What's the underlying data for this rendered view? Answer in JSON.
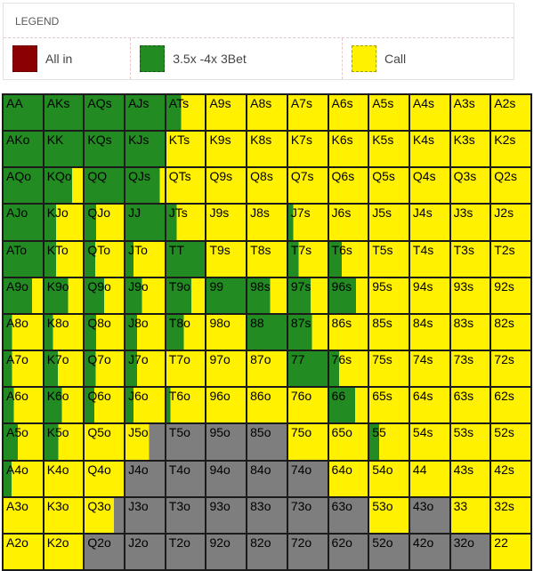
{
  "legend_panel": {
    "title": "LEGEND"
  },
  "chart_data": {
    "type": "heatmap",
    "layout": "13x13 preflop hand matrix, suited hands upper-right, offsuit lower-left, pairs on diagonal; split cells are vertical left-to-right fractions",
    "legend": [
      {
        "code": "a",
        "label": "All in",
        "color": "#8B0000"
      },
      {
        "code": "b",
        "label": "3.5x -4x 3Bet",
        "color": "#228B22"
      },
      {
        "code": "c",
        "label": "Call",
        "color": "#FFF100"
      }
    ],
    "unlabeled_colors": [
      {
        "code": "f",
        "color": "#7E7E7E"
      }
    ],
    "colors": {
      "a": "#8B0000",
      "b": "#228B22",
      "c": "#FFF100",
      "f": "#7E7E7E"
    },
    "rows": [
      [
        [
          "AA",
          "b"
        ],
        [
          "AKs",
          "b"
        ],
        [
          "AQs",
          "b"
        ],
        [
          "AJs",
          "b"
        ],
        [
          "ATs",
          "b38c"
        ],
        [
          "A9s",
          "c"
        ],
        [
          "A8s",
          "c"
        ],
        [
          "A7s",
          "c"
        ],
        [
          "A6s",
          "c"
        ],
        [
          "A5s",
          "c"
        ],
        [
          "A4s",
          "c"
        ],
        [
          "A3s",
          "c"
        ],
        [
          "A2s",
          "c"
        ]
      ],
      [
        [
          "AKo",
          "b"
        ],
        [
          "KK",
          "b"
        ],
        [
          "KQs",
          "b"
        ],
        [
          "KJs",
          "b"
        ],
        [
          "KTs",
          "c"
        ],
        [
          "K9s",
          "c"
        ],
        [
          "K8s",
          "c"
        ],
        [
          "K7s",
          "c"
        ],
        [
          "K6s",
          "c"
        ],
        [
          "K5s",
          "c"
        ],
        [
          "K4s",
          "c"
        ],
        [
          "K3s",
          "c"
        ],
        [
          "K2s",
          "c"
        ]
      ],
      [
        [
          "AQo",
          "b"
        ],
        [
          "KQo",
          "b72c"
        ],
        [
          "QQ",
          "b"
        ],
        [
          "QJs",
          "b88c"
        ],
        [
          "QTs",
          "c"
        ],
        [
          "Q9s",
          "c"
        ],
        [
          "Q8s",
          "c"
        ],
        [
          "Q7s",
          "c"
        ],
        [
          "Q6s",
          "c"
        ],
        [
          "Q5s",
          "c"
        ],
        [
          "Q4s",
          "c"
        ],
        [
          "Q3s",
          "c"
        ],
        [
          "Q2s",
          "c"
        ]
      ],
      [
        [
          "AJo",
          "b"
        ],
        [
          "KJo",
          "b30c"
        ],
        [
          "QJo",
          "b30c"
        ],
        [
          "JJ",
          "b"
        ],
        [
          "JTs",
          "b27c"
        ],
        [
          "J9s",
          "c"
        ],
        [
          "J8s",
          "c"
        ],
        [
          "J7s",
          "b13c"
        ],
        [
          "J6s",
          "c"
        ],
        [
          "J5s",
          "c"
        ],
        [
          "J4s",
          "c"
        ],
        [
          "J3s",
          "c"
        ],
        [
          "J2s",
          "c"
        ]
      ],
      [
        [
          "ATo",
          "b"
        ],
        [
          "KTo",
          "b30c"
        ],
        [
          "QTo",
          "b27c"
        ],
        [
          "JTo",
          "b20c"
        ],
        [
          "TT",
          "b"
        ],
        [
          "T9s",
          "c"
        ],
        [
          "T8s",
          "c"
        ],
        [
          "T7s",
          "b26c"
        ],
        [
          "T6s",
          "b33c"
        ],
        [
          "T5s",
          "c"
        ],
        [
          "T4s",
          "c"
        ],
        [
          "T3s",
          "c"
        ],
        [
          "T2s",
          "c"
        ]
      ],
      [
        [
          "A9o",
          "b73c"
        ],
        [
          "K9o",
          "b62c"
        ],
        [
          "Q9o",
          "b50c"
        ],
        [
          "J9o",
          "b42c"
        ],
        [
          "T9o",
          "b65c"
        ],
        [
          "99",
          "b"
        ],
        [
          "98s",
          "b58c"
        ],
        [
          "97s",
          "b57c"
        ],
        [
          "96s",
          "b70c"
        ],
        [
          "95s",
          "c"
        ],
        [
          "94s",
          "c"
        ],
        [
          "93s",
          "c"
        ],
        [
          "92s",
          "c"
        ]
      ],
      [
        [
          "A8o",
          "b22c"
        ],
        [
          "K8o",
          "b22c"
        ],
        [
          "Q8o",
          "b30c"
        ],
        [
          "J8o",
          "b30c"
        ],
        [
          "T8o",
          "b45c"
        ],
        [
          "98o",
          "c"
        ],
        [
          "88",
          "b"
        ],
        [
          "87s",
          "b60c"
        ],
        [
          "86s",
          "c"
        ],
        [
          "85s",
          "c"
        ],
        [
          "84s",
          "c"
        ],
        [
          "83s",
          "c"
        ],
        [
          "82s",
          "c"
        ]
      ],
      [
        [
          "A7o",
          "b22c"
        ],
        [
          "K7o",
          "b35c"
        ],
        [
          "Q7o",
          "b28c"
        ],
        [
          "J7o",
          "b30c"
        ],
        [
          "T7o",
          "c"
        ],
        [
          "97o",
          "c"
        ],
        [
          "87o",
          "c"
        ],
        [
          "77",
          "b"
        ],
        [
          "76s",
          "b26c"
        ],
        [
          "75s",
          "c"
        ],
        [
          "74s",
          "c"
        ],
        [
          "73s",
          "c"
        ],
        [
          "72s",
          "c"
        ]
      ],
      [
        [
          "A6o",
          "b26c"
        ],
        [
          "K6o",
          "b45c"
        ],
        [
          "Q6o",
          "b25c"
        ],
        [
          "J6o",
          "b20c"
        ],
        [
          "T6o",
          "b10c"
        ],
        [
          "96o",
          "c"
        ],
        [
          "86o",
          "c"
        ],
        [
          "76o",
          "c"
        ],
        [
          "66",
          "b67c"
        ],
        [
          "65s",
          "c"
        ],
        [
          "64s",
          "c"
        ],
        [
          "63s",
          "c"
        ],
        [
          "62s",
          "c"
        ]
      ],
      [
        [
          "A5o",
          "b36c"
        ],
        [
          "K5o",
          "b36c"
        ],
        [
          "Q5o",
          "c"
        ],
        [
          "J5o",
          "c60f"
        ],
        [
          "T5o",
          "f"
        ],
        [
          "95o",
          "f"
        ],
        [
          "85o",
          "f"
        ],
        [
          "75o",
          "c"
        ],
        [
          "65o",
          "c"
        ],
        [
          "55",
          "b25c"
        ],
        [
          "54s",
          "c"
        ],
        [
          "53s",
          "c"
        ],
        [
          "52s",
          "c"
        ]
      ],
      [
        [
          "A4o",
          "b20c"
        ],
        [
          "K4o",
          "c"
        ],
        [
          "Q4o",
          "c"
        ],
        [
          "J4o",
          "f"
        ],
        [
          "T4o",
          "f"
        ],
        [
          "94o",
          "f"
        ],
        [
          "84o",
          "f"
        ],
        [
          "74o",
          "f"
        ],
        [
          "64o",
          "c"
        ],
        [
          "54o",
          "c"
        ],
        [
          "44",
          "c"
        ],
        [
          "43s",
          "c"
        ],
        [
          "42s",
          "c"
        ]
      ],
      [
        [
          "A3o",
          "c"
        ],
        [
          "K3o",
          "c"
        ],
        [
          "Q3o",
          "c75f"
        ],
        [
          "J3o",
          "f"
        ],
        [
          "T3o",
          "f"
        ],
        [
          "93o",
          "f"
        ],
        [
          "83o",
          "f"
        ],
        [
          "73o",
          "f"
        ],
        [
          "63o",
          "f"
        ],
        [
          "53o",
          "c"
        ],
        [
          "43o",
          "f"
        ],
        [
          "33",
          "c"
        ],
        [
          "32s",
          "c"
        ]
      ],
      [
        [
          "A2o",
          "c"
        ],
        [
          "K2o",
          "c"
        ],
        [
          "Q2o",
          "f"
        ],
        [
          "J2o",
          "f"
        ],
        [
          "T2o",
          "f"
        ],
        [
          "92o",
          "f"
        ],
        [
          "82o",
          "f"
        ],
        [
          "72o",
          "f"
        ],
        [
          "62o",
          "f"
        ],
        [
          "52o",
          "f"
        ],
        [
          "42o",
          "f"
        ],
        [
          "32o",
          "f"
        ],
        [
          "22",
          "c"
        ]
      ]
    ]
  }
}
